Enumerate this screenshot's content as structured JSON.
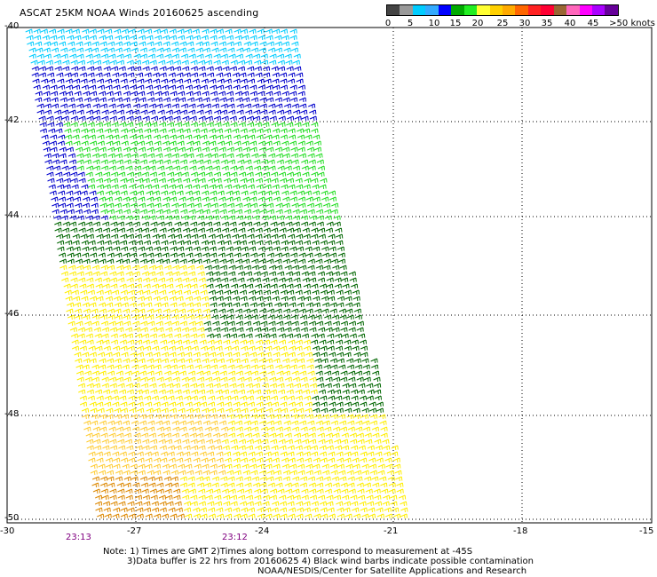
{
  "title": "ASCAT 25KM NOAA Winds 20160625 ascending",
  "colorbar": {
    "colors": [
      "#444444",
      "#999999",
      "#00ccff",
      "#33aaff",
      "#0000ff",
      "#00aa00",
      "#22ee22",
      "#ffff33",
      "#ffd000",
      "#ffaa00",
      "#ff6600",
      "#ff2222",
      "#ff0033",
      "#996633",
      "#ff66bb",
      "#ff00ff",
      "#aa00ff",
      "#660099"
    ],
    "labels": [
      "0",
      "5",
      "10",
      "15",
      "20",
      "25",
      "30",
      "35",
      "40",
      "45",
      ">50 knots"
    ]
  },
  "axes": {
    "x_ticks": [
      "-30",
      "-27",
      "-24",
      "-21",
      "-18",
      "-15"
    ],
    "y_ticks": [
      "-40",
      "-42",
      "-44",
      "-46",
      "-48",
      "-50"
    ]
  },
  "times": [
    "23:13",
    "23:12"
  ],
  "notes": [
    "Note: 1) Times are GMT 2)Times along bottom correspond to measurement at -45S",
    "3)Data buffer is 22 hrs from 20160625 4) Black wind barbs indicate possible contamination",
    "NOAA/NESDIS/Center for Satellite Applications and Research"
  ],
  "swath_colors": {
    "cyan": "#00ccff",
    "blue": "#0000cc",
    "lgreen": "#22dd22",
    "dgreen": "#006600",
    "yellow": "#ffee00",
    "gold": "#ffcc33",
    "orange": "#dd8800"
  }
}
